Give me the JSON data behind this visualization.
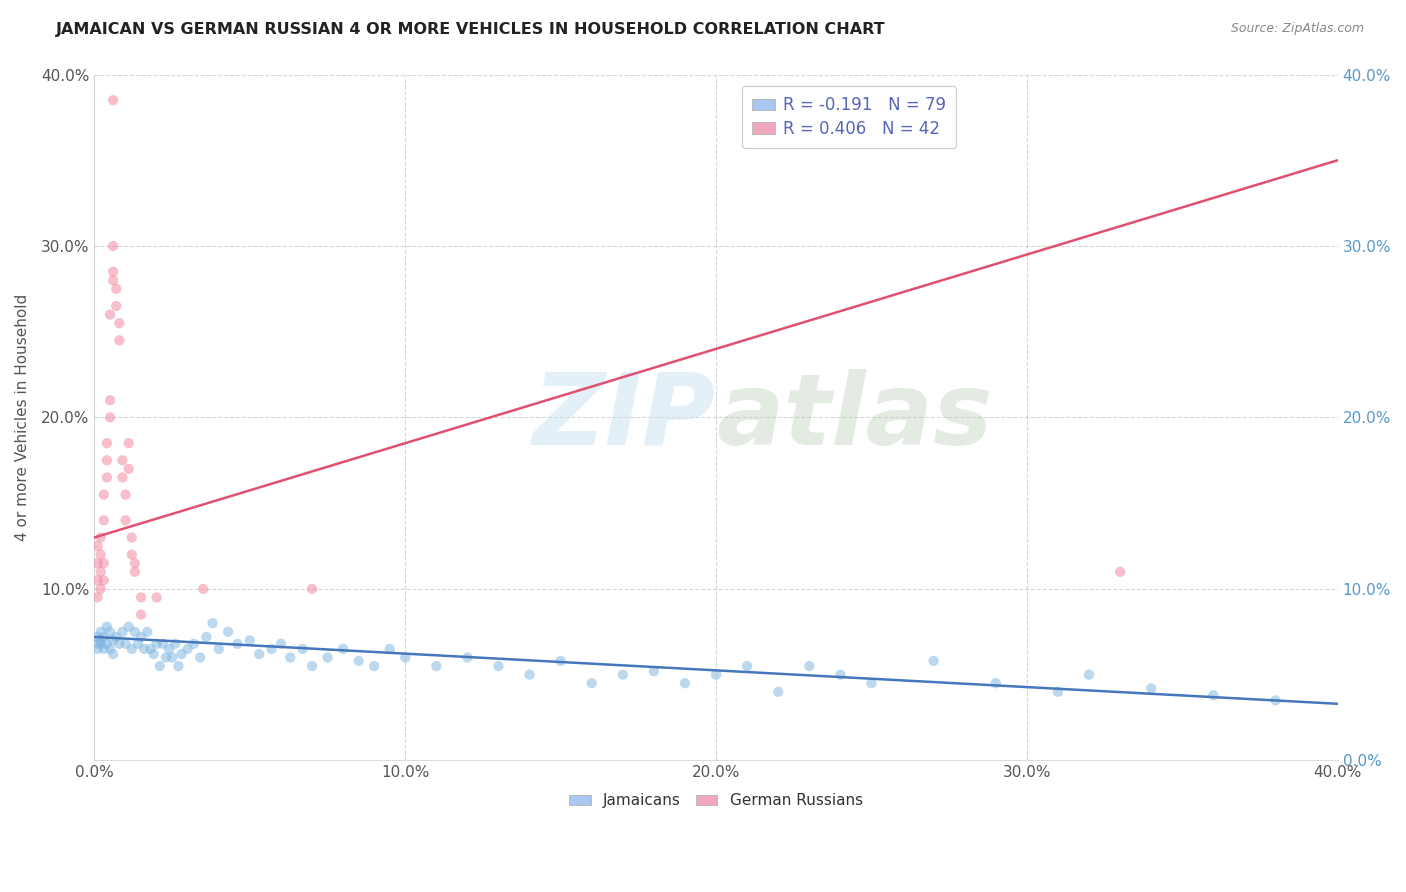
{
  "title": "JAMAICAN VS GERMAN RUSSIAN 4 OR MORE VEHICLES IN HOUSEHOLD CORRELATION CHART",
  "source": "Source: ZipAtlas.com",
  "ylabel": "4 or more Vehicles in Household",
  "x_min": 0.0,
  "x_max": 0.4,
  "y_min": 0.0,
  "y_max": 0.4,
  "x_ticks": [
    0.0,
    0.1,
    0.2,
    0.3,
    0.4
  ],
  "y_ticks": [
    0.0,
    0.1,
    0.2,
    0.3,
    0.4
  ],
  "x_tick_labels": [
    "0.0%",
    "10.0%",
    "20.0%",
    "30.0%",
    "40.0%"
  ],
  "y_tick_labels": [
    "",
    "10.0%",
    "20.0%",
    "30.0%",
    "40.0%"
  ],
  "legend_labels_bottom": [
    "Jamaicans",
    "German Russians"
  ],
  "legend_colors_bottom": [
    "#a8c8f0",
    "#f0a8bc"
  ],
  "watermark_zip": "ZIP",
  "watermark_atlas": "atlas",
  "blue_scatter_color": "#7ab3e0",
  "pink_scatter_color": "#f08098",
  "blue_line_color": "#4477bb",
  "pink_line_color": "#e05070",
  "R_blue": -0.191,
  "N_blue": 79,
  "R_pink": 0.406,
  "N_pink": 42,
  "blue_scatter": [
    [
      0.001,
      0.072
    ],
    [
      0.001,
      0.068
    ],
    [
      0.001,
      0.065
    ],
    [
      0.002,
      0.075
    ],
    [
      0.002,
      0.07
    ],
    [
      0.002,
      0.068
    ],
    [
      0.003,
      0.072
    ],
    [
      0.003,
      0.065
    ],
    [
      0.004,
      0.078
    ],
    [
      0.004,
      0.068
    ],
    [
      0.005,
      0.075
    ],
    [
      0.005,
      0.065
    ],
    [
      0.006,
      0.07
    ],
    [
      0.006,
      0.062
    ],
    [
      0.007,
      0.072
    ],
    [
      0.008,
      0.068
    ],
    [
      0.009,
      0.075
    ],
    [
      0.01,
      0.068
    ],
    [
      0.011,
      0.078
    ],
    [
      0.012,
      0.065
    ],
    [
      0.013,
      0.075
    ],
    [
      0.014,
      0.068
    ],
    [
      0.015,
      0.072
    ],
    [
      0.016,
      0.065
    ],
    [
      0.017,
      0.075
    ],
    [
      0.018,
      0.065
    ],
    [
      0.019,
      0.062
    ],
    [
      0.02,
      0.068
    ],
    [
      0.021,
      0.055
    ],
    [
      0.022,
      0.068
    ],
    [
      0.023,
      0.06
    ],
    [
      0.024,
      0.065
    ],
    [
      0.025,
      0.06
    ],
    [
      0.026,
      0.068
    ],
    [
      0.027,
      0.055
    ],
    [
      0.028,
      0.062
    ],
    [
      0.03,
      0.065
    ],
    [
      0.032,
      0.068
    ],
    [
      0.034,
      0.06
    ],
    [
      0.036,
      0.072
    ],
    [
      0.038,
      0.08
    ],
    [
      0.04,
      0.065
    ],
    [
      0.043,
      0.075
    ],
    [
      0.046,
      0.068
    ],
    [
      0.05,
      0.07
    ],
    [
      0.053,
      0.062
    ],
    [
      0.057,
      0.065
    ],
    [
      0.06,
      0.068
    ],
    [
      0.063,
      0.06
    ],
    [
      0.067,
      0.065
    ],
    [
      0.07,
      0.055
    ],
    [
      0.075,
      0.06
    ],
    [
      0.08,
      0.065
    ],
    [
      0.085,
      0.058
    ],
    [
      0.09,
      0.055
    ],
    [
      0.095,
      0.065
    ],
    [
      0.1,
      0.06
    ],
    [
      0.11,
      0.055
    ],
    [
      0.12,
      0.06
    ],
    [
      0.13,
      0.055
    ],
    [
      0.14,
      0.05
    ],
    [
      0.15,
      0.058
    ],
    [
      0.16,
      0.045
    ],
    [
      0.17,
      0.05
    ],
    [
      0.18,
      0.052
    ],
    [
      0.19,
      0.045
    ],
    [
      0.2,
      0.05
    ],
    [
      0.21,
      0.055
    ],
    [
      0.22,
      0.04
    ],
    [
      0.23,
      0.055
    ],
    [
      0.24,
      0.05
    ],
    [
      0.25,
      0.045
    ],
    [
      0.27,
      0.058
    ],
    [
      0.29,
      0.045
    ],
    [
      0.31,
      0.04
    ],
    [
      0.32,
      0.05
    ],
    [
      0.34,
      0.042
    ],
    [
      0.36,
      0.038
    ],
    [
      0.38,
      0.035
    ]
  ],
  "pink_scatter": [
    [
      0.001,
      0.095
    ],
    [
      0.001,
      0.105
    ],
    [
      0.001,
      0.115
    ],
    [
      0.001,
      0.125
    ],
    [
      0.002,
      0.1
    ],
    [
      0.002,
      0.11
    ],
    [
      0.002,
      0.12
    ],
    [
      0.002,
      0.13
    ],
    [
      0.003,
      0.105
    ],
    [
      0.003,
      0.115
    ],
    [
      0.003,
      0.14
    ],
    [
      0.003,
      0.155
    ],
    [
      0.004,
      0.175
    ],
    [
      0.004,
      0.165
    ],
    [
      0.004,
      0.185
    ],
    [
      0.005,
      0.2
    ],
    [
      0.005,
      0.21
    ],
    [
      0.005,
      0.26
    ],
    [
      0.006,
      0.28
    ],
    [
      0.006,
      0.285
    ],
    [
      0.006,
      0.3
    ],
    [
      0.006,
      0.385
    ],
    [
      0.007,
      0.275
    ],
    [
      0.007,
      0.265
    ],
    [
      0.008,
      0.255
    ],
    [
      0.008,
      0.245
    ],
    [
      0.009,
      0.175
    ],
    [
      0.009,
      0.165
    ],
    [
      0.01,
      0.155
    ],
    [
      0.01,
      0.14
    ],
    [
      0.011,
      0.17
    ],
    [
      0.011,
      0.185
    ],
    [
      0.012,
      0.13
    ],
    [
      0.012,
      0.12
    ],
    [
      0.013,
      0.115
    ],
    [
      0.013,
      0.11
    ],
    [
      0.015,
      0.095
    ],
    [
      0.015,
      0.085
    ],
    [
      0.02,
      0.095
    ],
    [
      0.035,
      0.1
    ],
    [
      0.07,
      0.1
    ],
    [
      0.33,
      0.11
    ]
  ],
  "blue_trendline": [
    [
      0.0,
      0.072
    ],
    [
      0.4,
      0.033
    ]
  ],
  "pink_trendline": [
    [
      0.0,
      0.13
    ],
    [
      0.4,
      0.35
    ]
  ]
}
